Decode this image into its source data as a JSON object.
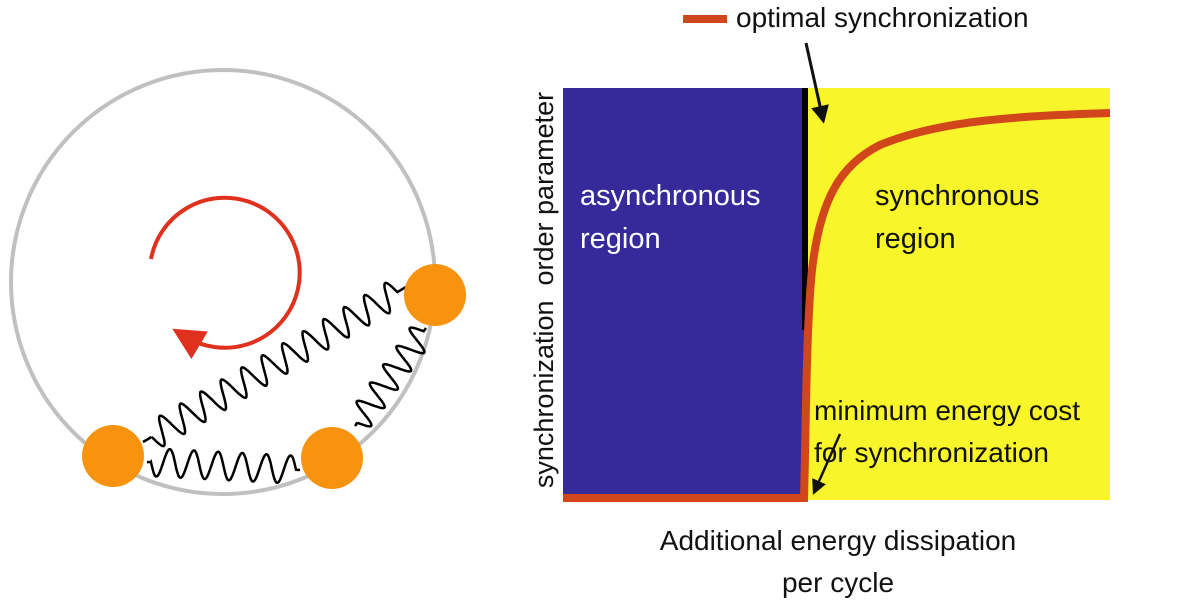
{
  "colors": {
    "ring": "#c0c0c0",
    "oscillator": "#f7930e",
    "rotation_arrow": "#e0301e",
    "spring": "#000000",
    "async_region": "#362a9b",
    "sync_region": "#f8f52a",
    "optimal_curve": "#d2461b",
    "boundary": "#000000"
  },
  "left_panel": {
    "icons": [
      "ring",
      "rotation-arrow-clockwise",
      "oscillator-bead",
      "spring"
    ],
    "bead_count": 3
  },
  "right_panel": {
    "legend": {
      "label": "optimal synchronization"
    },
    "regions": {
      "async_line1": "asynchronous",
      "async_line2": "region",
      "sync_line1": "synchronous",
      "sync_line2": "region"
    },
    "annotation": {
      "line1": "minimum energy cost",
      "line2": "for synchronization"
    },
    "y_axis_label": "synchronization  order parameter",
    "x_axis_label_line1": "Additional energy dissipation",
    "x_axis_label_line2": "per cycle"
  }
}
